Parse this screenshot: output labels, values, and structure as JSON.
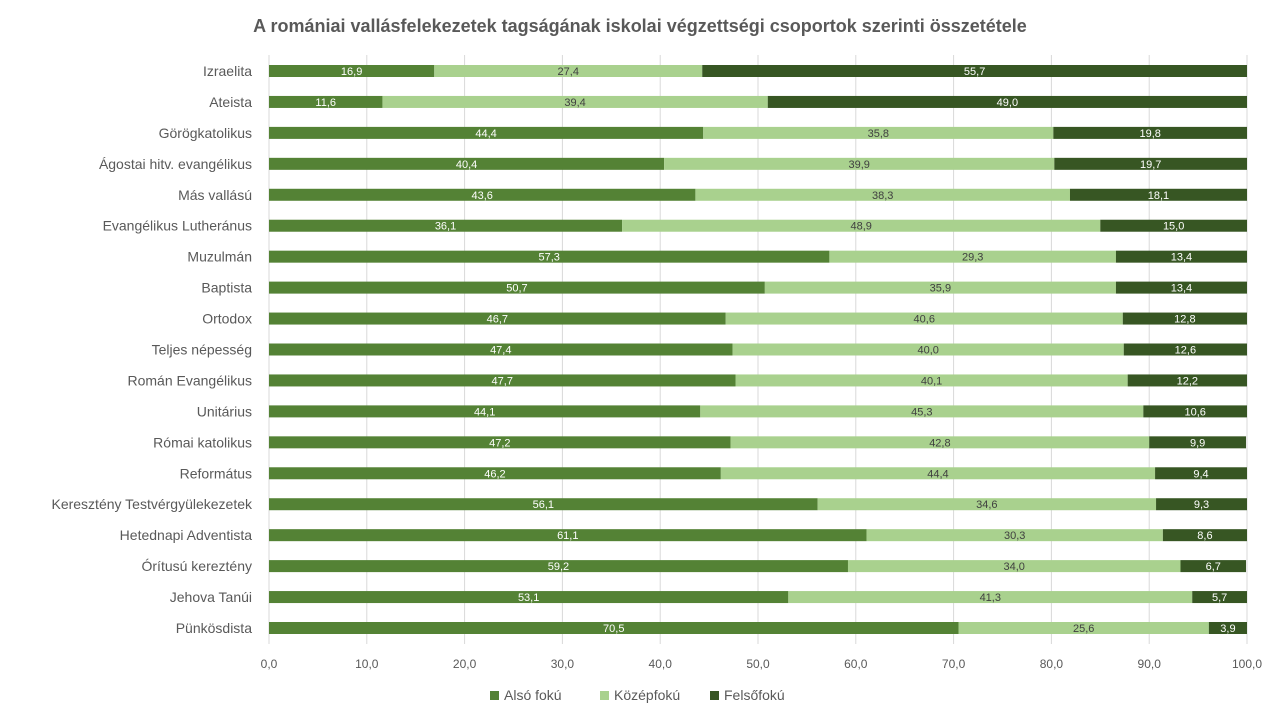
{
  "chart_data": {
    "type": "bar",
    "orientation": "horizontal",
    "stacked": true,
    "title": "A romániai vallásfelekezetek tagságának iskolai végzettségi csoportok szerinti összetétele",
    "categories": [
      "Izraelita",
      "Ateista",
      "Görögkatolikus",
      "Ágostai hitv.  evangélikus",
      "Más vallású",
      "Evangélikus Lutheránus",
      "Muzulmán",
      "Baptista",
      "Ortodox",
      "Teljes népesség",
      "Román Evangélikus",
      "Unitárius",
      "Római katolikus",
      "Református",
      "Keresztény Testvérgyülekezetek",
      "Hetednapi Adventista",
      "Órítusú kereztény",
      "Jehova Tanúi",
      "Pünkösdista"
    ],
    "series": [
      {
        "name": "Alsó fokú",
        "color": "#548235",
        "label_color": "#ffffff",
        "values": [
          16.9,
          11.6,
          44.4,
          40.4,
          43.6,
          36.1,
          57.3,
          50.7,
          46.7,
          47.4,
          47.7,
          44.1,
          47.2,
          46.2,
          56.1,
          61.1,
          59.2,
          53.1,
          70.5
        ]
      },
      {
        "name": "Középfokú",
        "color": "#a9d18e",
        "label_color": "#404040",
        "values": [
          27.4,
          39.4,
          35.8,
          39.9,
          38.3,
          48.9,
          29.3,
          35.9,
          40.6,
          40.0,
          40.1,
          45.3,
          42.8,
          44.4,
          34.6,
          30.3,
          34.0,
          41.3,
          25.6
        ]
      },
      {
        "name": "Felsőfokú",
        "color": "#375623",
        "label_color": "#ffffff",
        "values": [
          55.7,
          49.0,
          19.8,
          19.7,
          18.1,
          15.0,
          13.4,
          13.4,
          12.8,
          12.6,
          12.2,
          10.6,
          9.9,
          9.4,
          9.3,
          8.6,
          6.7,
          5.7,
          3.9
        ]
      }
    ],
    "xlim": [
      0,
      100
    ],
    "xticks": [
      "0,0",
      "10,0",
      "20,0",
      "30,0",
      "40,0",
      "50,0",
      "60,0",
      "70,0",
      "80,0",
      "90,0",
      "100,0"
    ],
    "grid": true,
    "legend": "bottom",
    "xlabel": "",
    "ylabel": ""
  }
}
